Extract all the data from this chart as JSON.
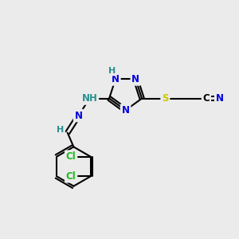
{
  "background_color": "#ebebeb",
  "atom_colors": {
    "N": "#0000e0",
    "H": "#2a9090",
    "S": "#c8c800",
    "Cl": "#20bb20",
    "C": "#000000"
  },
  "bond_color": "#000000",
  "bond_width": 1.5,
  "font_size_atom": 8.5
}
